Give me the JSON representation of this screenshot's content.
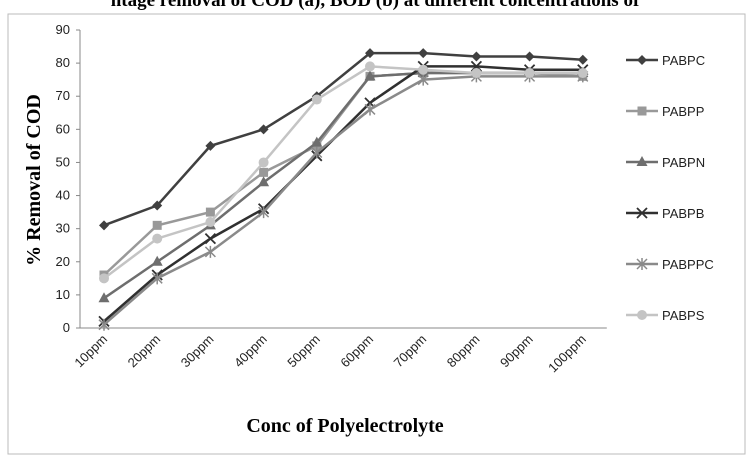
{
  "chart_data": {
    "type": "line",
    "title": "ntage removal of COD (a), BOD (b) at different concentrations of",
    "x_label": "Conc of Polyelectrolyte",
    "y_label": "% Removal of COD",
    "categories": [
      "10ppm",
      "20ppm",
      "30ppm",
      "40ppm",
      "50ppm",
      "60ppm",
      "70ppm",
      "80ppm",
      "90ppm",
      "100ppm"
    ],
    "ylim": [
      0,
      90
    ],
    "yticks": [
      0,
      10,
      20,
      30,
      40,
      50,
      60,
      70,
      80,
      90
    ],
    "legend": "right",
    "series": [
      {
        "name": "PABPC",
        "color": "#404040",
        "marker": "diamond",
        "values": [
          31,
          37,
          55,
          60,
          70,
          83,
          83,
          82,
          82,
          81
        ]
      },
      {
        "name": "PABPP",
        "color": "#999999",
        "marker": "square",
        "values": [
          16,
          31,
          35,
          47,
          55,
          76,
          77,
          77,
          77,
          76
        ]
      },
      {
        "name": "PABPN",
        "color": "#6e6e6e",
        "marker": "triangle",
        "values": [
          9,
          20,
          31,
          44,
          56,
          76,
          77,
          77,
          77,
          77
        ]
      },
      {
        "name": "PABPB",
        "color": "#303030",
        "marker": "x",
        "values": [
          2,
          16,
          27,
          36,
          52,
          68,
          79,
          79,
          78,
          78
        ]
      },
      {
        "name": "PABPPC",
        "color": "#8a8a8a",
        "marker": "star",
        "values": [
          1,
          15,
          23,
          35,
          53,
          66,
          75,
          76,
          76,
          76
        ]
      },
      {
        "name": "PABPS",
        "color": "#c4c4c4",
        "marker": "circle",
        "values": [
          15,
          27,
          32,
          50,
          69,
          79,
          78,
          77,
          77,
          77
        ]
      }
    ]
  }
}
